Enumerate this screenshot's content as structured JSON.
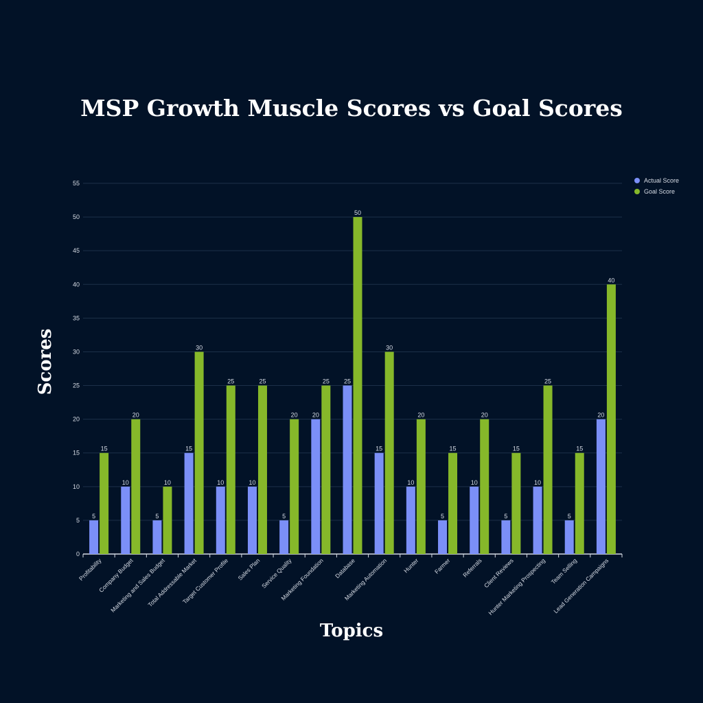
{
  "chart_data": {
    "type": "bar",
    "title": "MSP Growth Muscle Scores vs Goal Scores",
    "xlabel": "Topics",
    "ylabel": "Scores",
    "ylim": [
      0,
      55
    ],
    "yticks": [
      0,
      5,
      10,
      15,
      20,
      25,
      30,
      35,
      40,
      45,
      50,
      55
    ],
    "grid": true,
    "legend_position": "top-right",
    "categories": [
      "Profitability",
      "Company Budget",
      "Marketing and Sales Budget",
      "Total Addressable Market",
      "Target Customer Profile",
      "Sales Plan",
      "Service Quality",
      "Marketing Foundation",
      "Database",
      "Marketing Automation",
      "Hunter",
      "Farmer",
      "Referrals",
      "Client Reviews",
      "Hunter Marketing Prospecting",
      "Team Selling",
      "Lead Generation Campaigns"
    ],
    "series": [
      {
        "name": "Actual Score",
        "color": "#7b8ff7",
        "values": [
          5,
          10,
          5,
          15,
          10,
          10,
          5,
          20,
          25,
          15,
          10,
          5,
          10,
          5,
          10,
          5,
          20
        ]
      },
      {
        "name": "Goal Score",
        "color": "#86b82a",
        "values": [
          15,
          20,
          10,
          30,
          25,
          25,
          20,
          25,
          50,
          30,
          20,
          15,
          20,
          15,
          25,
          15,
          40
        ]
      }
    ]
  },
  "colors": {
    "background": "#021227",
    "gridline": "#1d3049",
    "axis": "#d8dde6",
    "label_text": "#d8dde6"
  }
}
